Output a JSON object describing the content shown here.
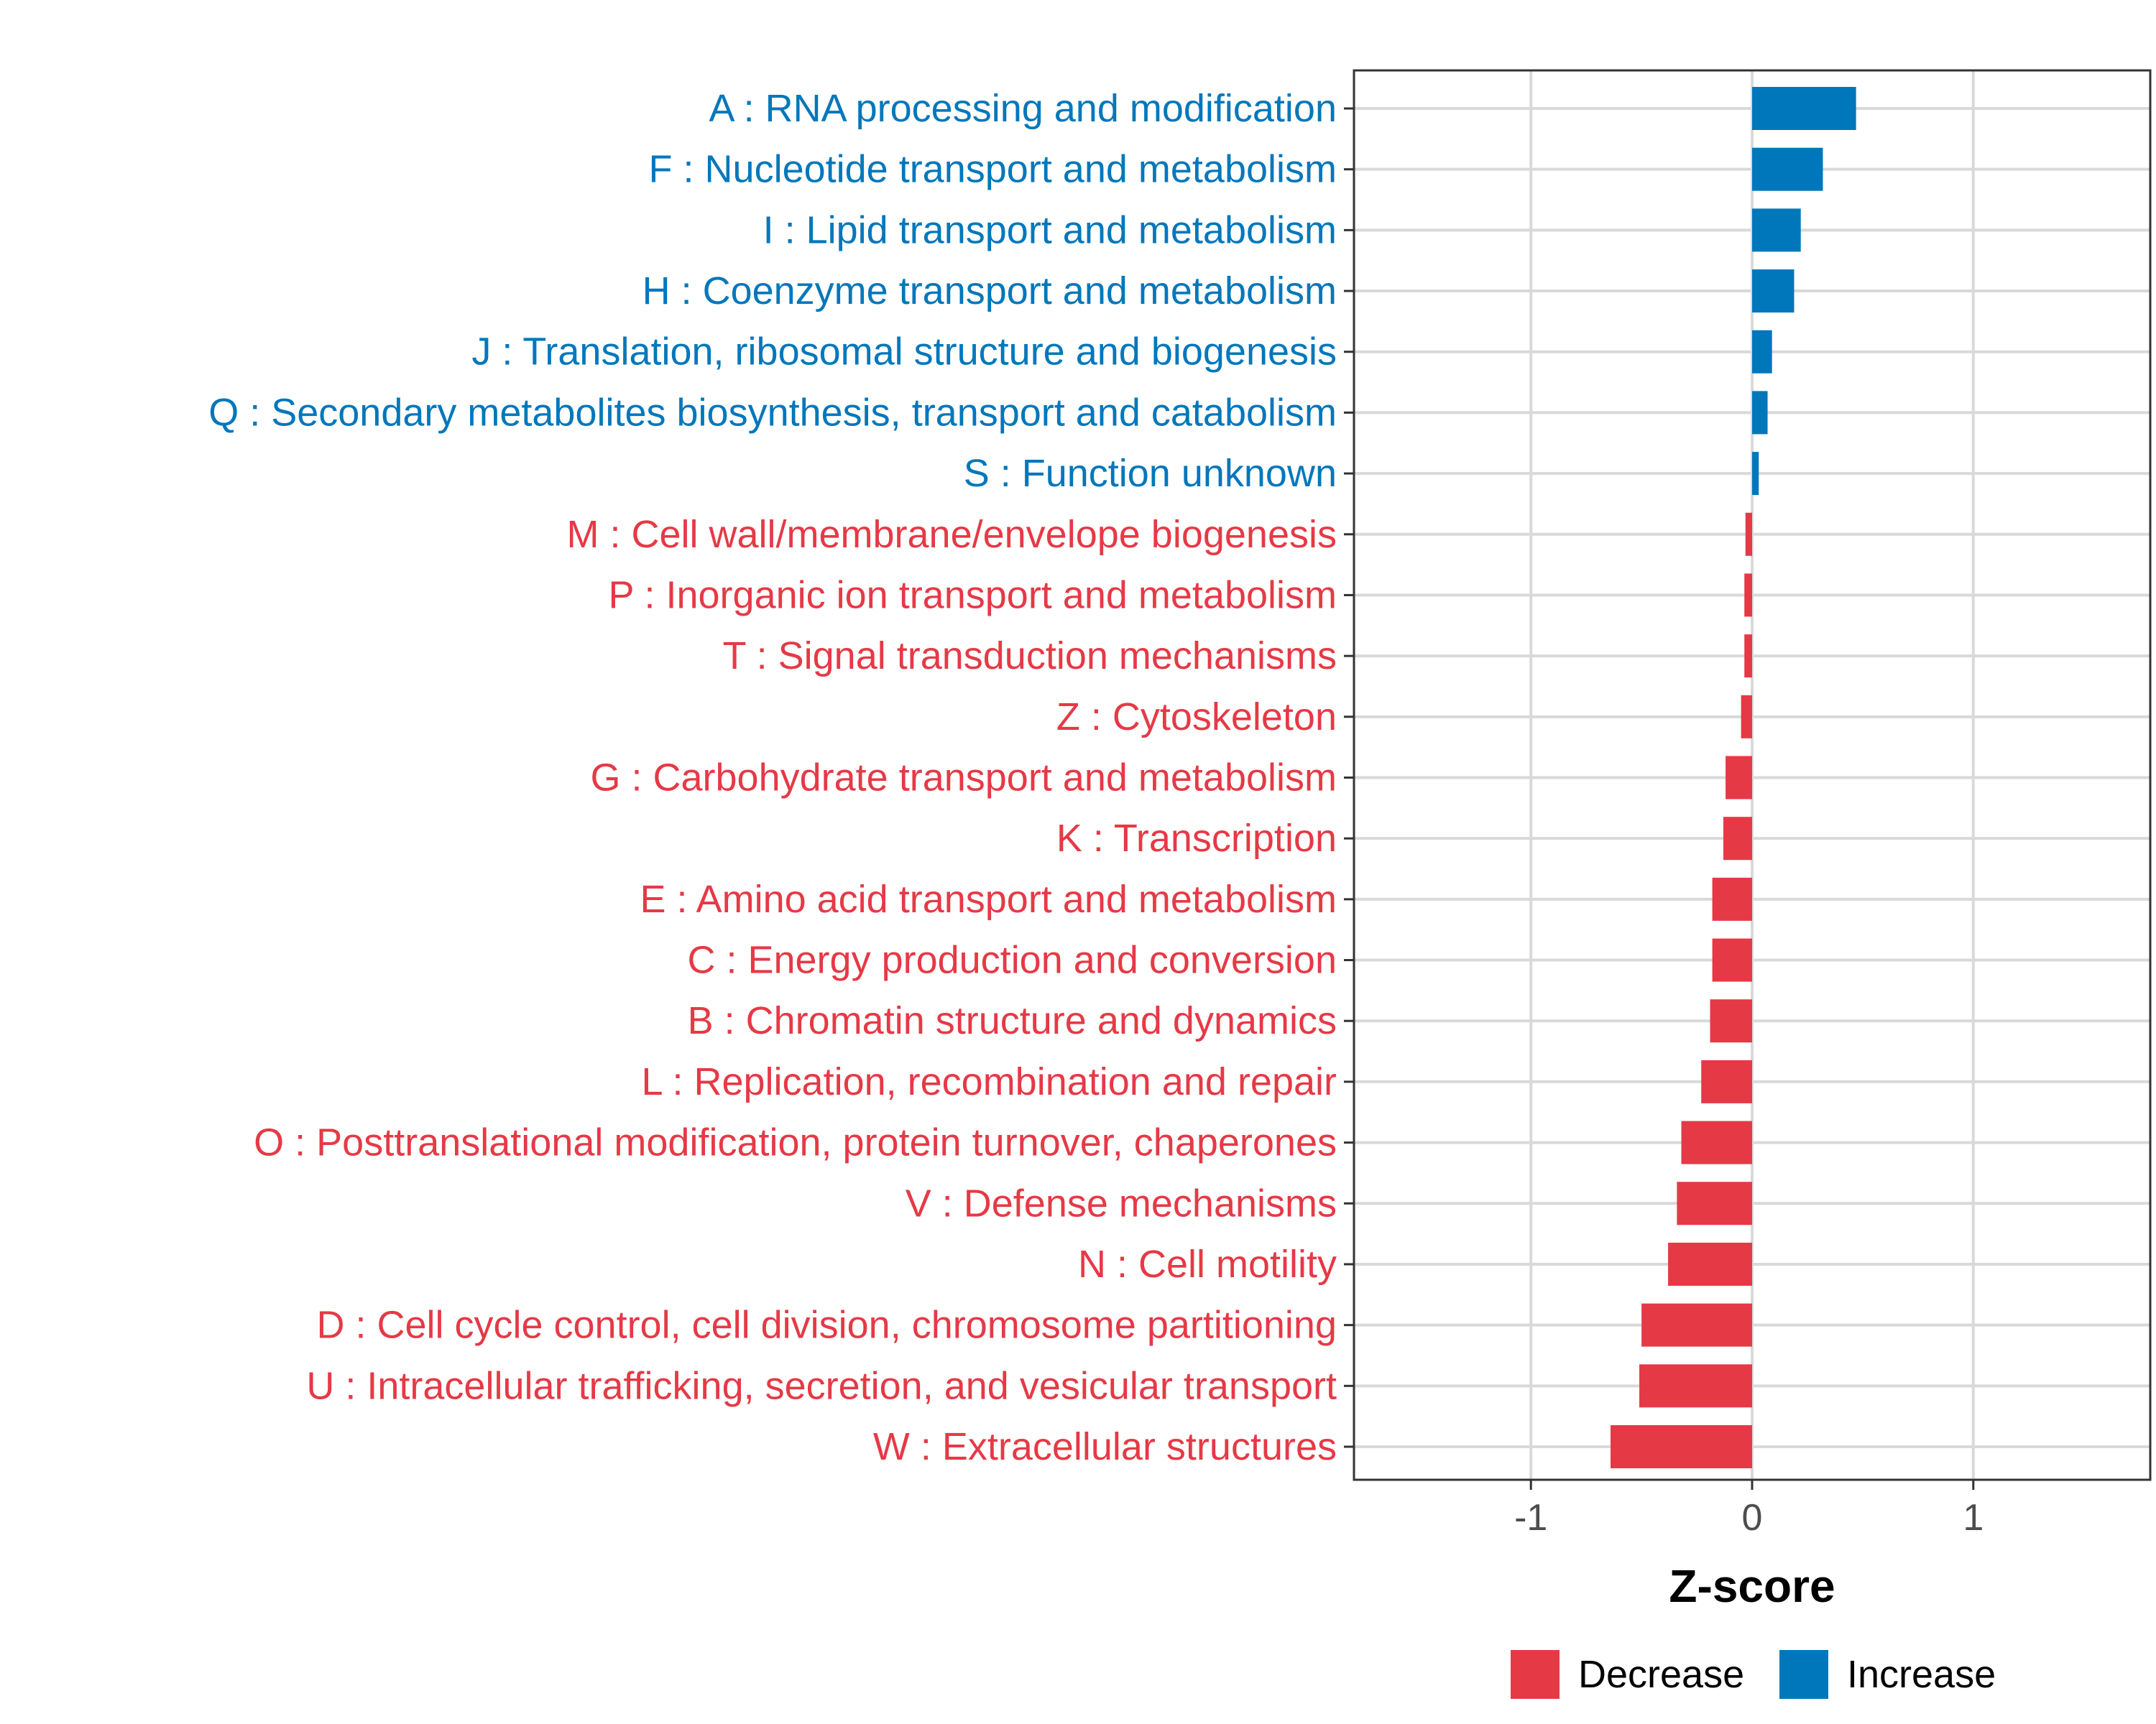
{
  "chart_data": {
    "type": "bar",
    "orientation": "horizontal",
    "xlabel": "Z-score",
    "ylabel": "",
    "xlim": [
      -1.8,
      1.8
    ],
    "x_ticks": [
      {
        "value": -1,
        "label": "-1"
      },
      {
        "value": 0,
        "label": "0"
      },
      {
        "value": 1,
        "label": "1"
      }
    ],
    "grid": true,
    "categories": [
      "A : RNA processing and modification",
      "F : Nucleotide transport and metabolism",
      "I : Lipid transport and metabolism",
      "H : Coenzyme transport and metabolism",
      "J : Translation, ribosomal structure and biogenesis",
      "Q : Secondary metabolites biosynthesis, transport and catabolism",
      "S : Function unknown",
      "M : Cell wall/membrane/envelope biogenesis",
      "P : Inorganic ion transport and metabolism",
      "T : Signal transduction mechanisms",
      "Z : Cytoskeleton",
      "G : Carbohydrate transport and metabolism",
      "K : Transcription",
      "E : Amino acid transport and metabolism",
      "C : Energy production and conversion",
      "B : Chromatin structure and dynamics",
      "L : Replication, recombination and repair",
      "O : Posttranslational modification, protein turnover, chaperones",
      "V : Defense mechanisms",
      "N : Cell motility",
      "D : Cell cycle control, cell division, chromosome partitioning",
      "U : Intracellular trafficking, secretion, and vesicular transport",
      "W : Extracellular structures"
    ],
    "values": [
      0.47,
      0.32,
      0.22,
      0.19,
      0.09,
      0.07,
      0.03,
      -0.03,
      -0.035,
      -0.035,
      -0.05,
      -0.12,
      -0.13,
      -0.18,
      -0.18,
      -0.19,
      -0.23,
      -0.32,
      -0.34,
      -0.38,
      -0.5,
      -0.51,
      -0.64
    ],
    "series_assignment": [
      "Increase",
      "Increase",
      "Increase",
      "Increase",
      "Increase",
      "Increase",
      "Increase",
      "Decrease",
      "Decrease",
      "Decrease",
      "Decrease",
      "Decrease",
      "Decrease",
      "Decrease",
      "Decrease",
      "Decrease",
      "Decrease",
      "Decrease",
      "Decrease",
      "Decrease",
      "Decrease",
      "Decrease",
      "Decrease"
    ],
    "legend": {
      "position": "bottom",
      "items": [
        {
          "label": "Decrease",
          "color": "#e63946"
        },
        {
          "label": "Increase",
          "color": "#0077bb"
        }
      ]
    },
    "colors": {
      "Increase": "#0077bb",
      "Decrease": "#e63946"
    }
  }
}
